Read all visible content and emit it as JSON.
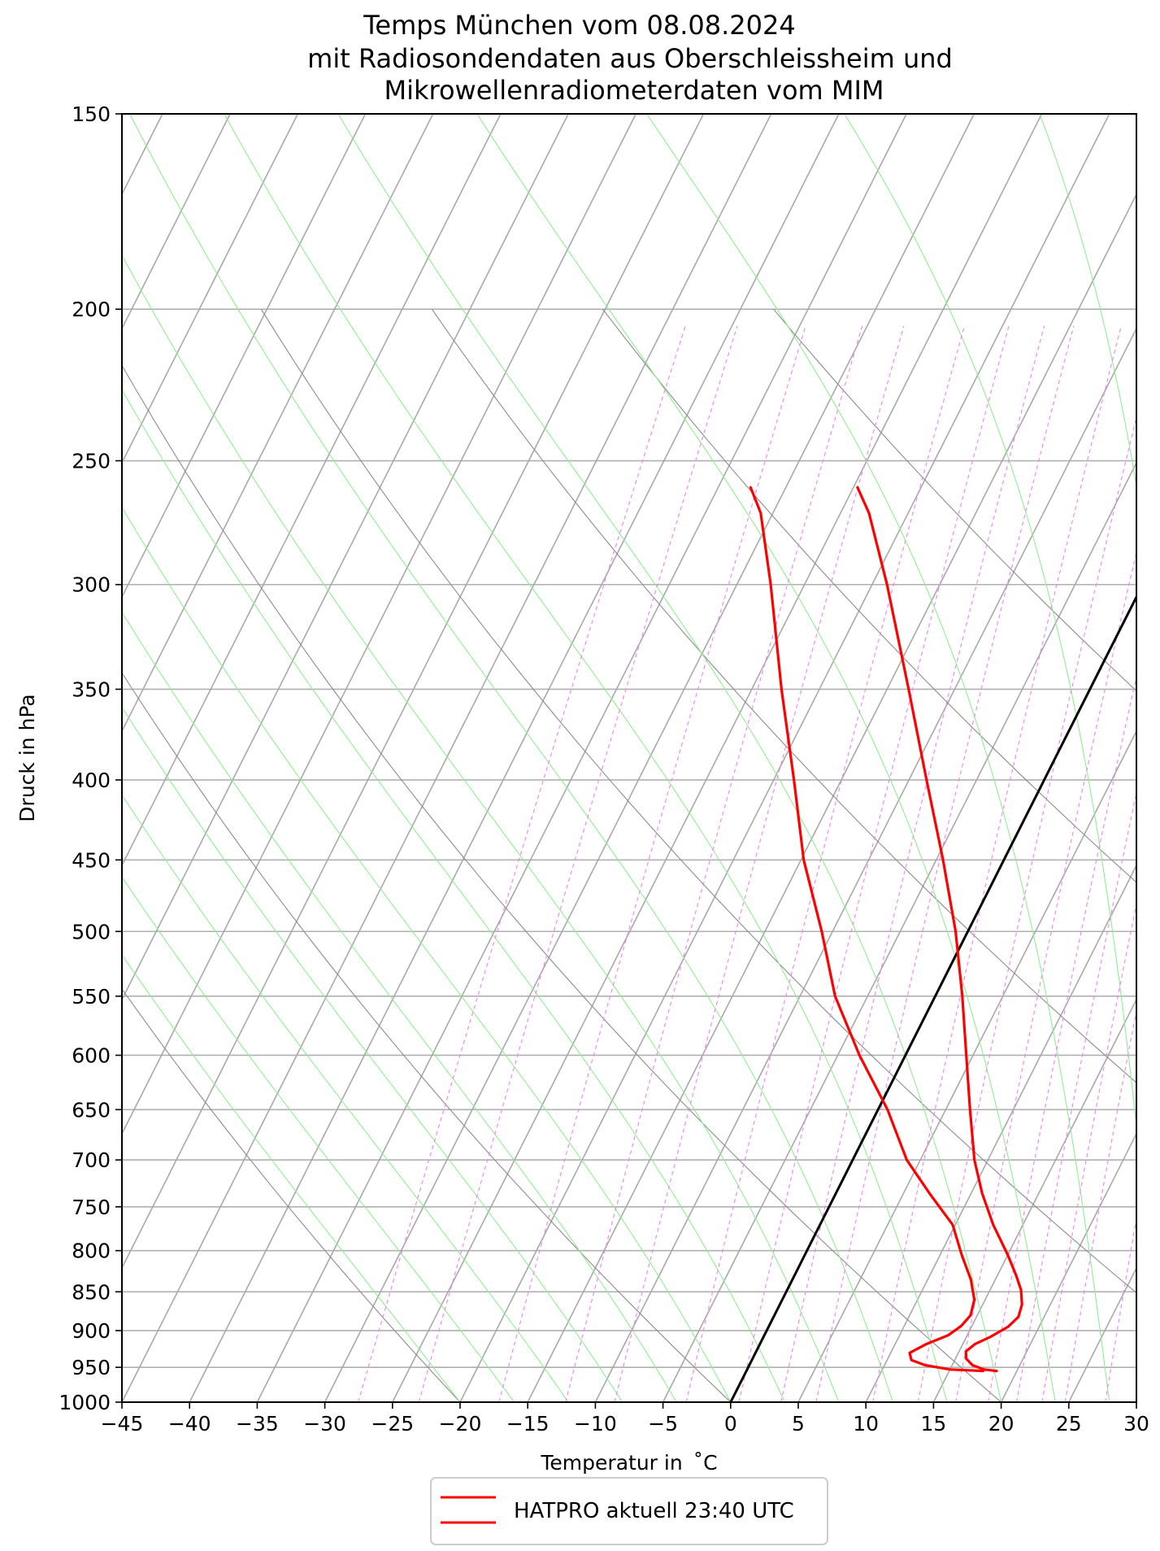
{
  "chart_data": {
    "type": "line",
    "title_lines": [
      "Temps München vom 08.08.2024",
      "mit Radiosondendaten aus Oberschleissheim und",
      "Mikrowellenradiometerdaten vom MIM"
    ],
    "xlabel": "Temperatur in  ˚C",
    "ylabel": "Druck in hPa",
    "xlim": [
      -45,
      30
    ],
    "ylim": [
      1000,
      150
    ],
    "y_scale": "log",
    "skew": "skew-T log-p",
    "x_ticks": [
      -45,
      -40,
      -35,
      -30,
      -25,
      -20,
      -15,
      -10,
      -5,
      0,
      5,
      10,
      15,
      20,
      25,
      30
    ],
    "x_tick_labels": [
      "−45",
      "−40",
      "−35",
      "−30",
      "−25",
      "−20",
      "−15",
      "−10",
      "−5",
      "0",
      "5",
      "10",
      "15",
      "20",
      "25",
      "30"
    ],
    "y_ticks": [
      1000,
      950,
      900,
      850,
      800,
      750,
      700,
      650,
      600,
      550,
      500,
      450,
      400,
      350,
      300,
      250,
      200,
      150
    ],
    "y_tick_labels": [
      "1000",
      "950",
      "900",
      "850",
      "800",
      "750",
      "700",
      "650",
      "600",
      "550",
      "500",
      "450",
      "400",
      "350",
      "300",
      "250",
      "200",
      "150"
    ],
    "grid": true,
    "legend": {
      "placement": "bottom-center",
      "entries": [
        "HATPRO aktuell 23:40 UTC"
      ]
    },
    "colors": {
      "profile": "#ff0000",
      "zero_isotherm": "#000000",
      "isotherms": "#a8a8a8",
      "dry_adiabats": "#8c8c8c",
      "moist_adiabats": "#90ee90",
      "mixing_ratio": "#ee82ee",
      "grid": "#b0b0b0"
    },
    "series": [
      {
        "name": "HATPRO aktuell 23:40 UTC",
        "role": "temperature",
        "points": [
          [
            18.5,
            955
          ],
          [
            17.5,
            953
          ],
          [
            16.5,
            947
          ],
          [
            15.8,
            938
          ],
          [
            15.5,
            928
          ],
          [
            15.9,
            918
          ],
          [
            16.8,
            908
          ],
          [
            17.7,
            895
          ],
          [
            18.1,
            882
          ],
          [
            17.9,
            866
          ],
          [
            17.3,
            848
          ],
          [
            16.4,
            830
          ],
          [
            15.0,
            805
          ],
          [
            12.8,
            770
          ],
          [
            10.8,
            735
          ],
          [
            9.0,
            700
          ],
          [
            6.8,
            650
          ],
          [
            4.5,
            600
          ],
          [
            2.0,
            550
          ],
          [
            -0.9,
            500
          ],
          [
            -4.5,
            450
          ],
          [
            -8.7,
            400
          ],
          [
            -13.4,
            350
          ],
          [
            -18.9,
            300
          ],
          [
            -22.9,
            270
          ],
          [
            -24.7,
            260
          ]
        ]
      },
      {
        "name": "HATPRO aktuell 23:40 UTC",
        "role": "dewpoint",
        "points": [
          [
            17.5,
            955
          ],
          [
            15.0,
            953
          ],
          [
            13.0,
            947
          ],
          [
            11.8,
            940
          ],
          [
            11.4,
            930
          ],
          [
            12.3,
            918
          ],
          [
            13.6,
            906
          ],
          [
            14.2,
            894
          ],
          [
            14.5,
            880
          ],
          [
            14.2,
            860
          ],
          [
            13.2,
            835
          ],
          [
            11.6,
            805
          ],
          [
            9.8,
            770
          ],
          [
            6.9,
            735
          ],
          [
            4.0,
            700
          ],
          [
            0.7,
            650
          ],
          [
            -3.4,
            600
          ],
          [
            -7.4,
            550
          ],
          [
            -10.8,
            500
          ],
          [
            -14.8,
            450
          ],
          [
            -18.5,
            400
          ],
          [
            -22.8,
            350
          ],
          [
            -27.5,
            300
          ],
          [
            -30.9,
            270
          ],
          [
            -32.6,
            260
          ]
        ]
      }
    ]
  }
}
